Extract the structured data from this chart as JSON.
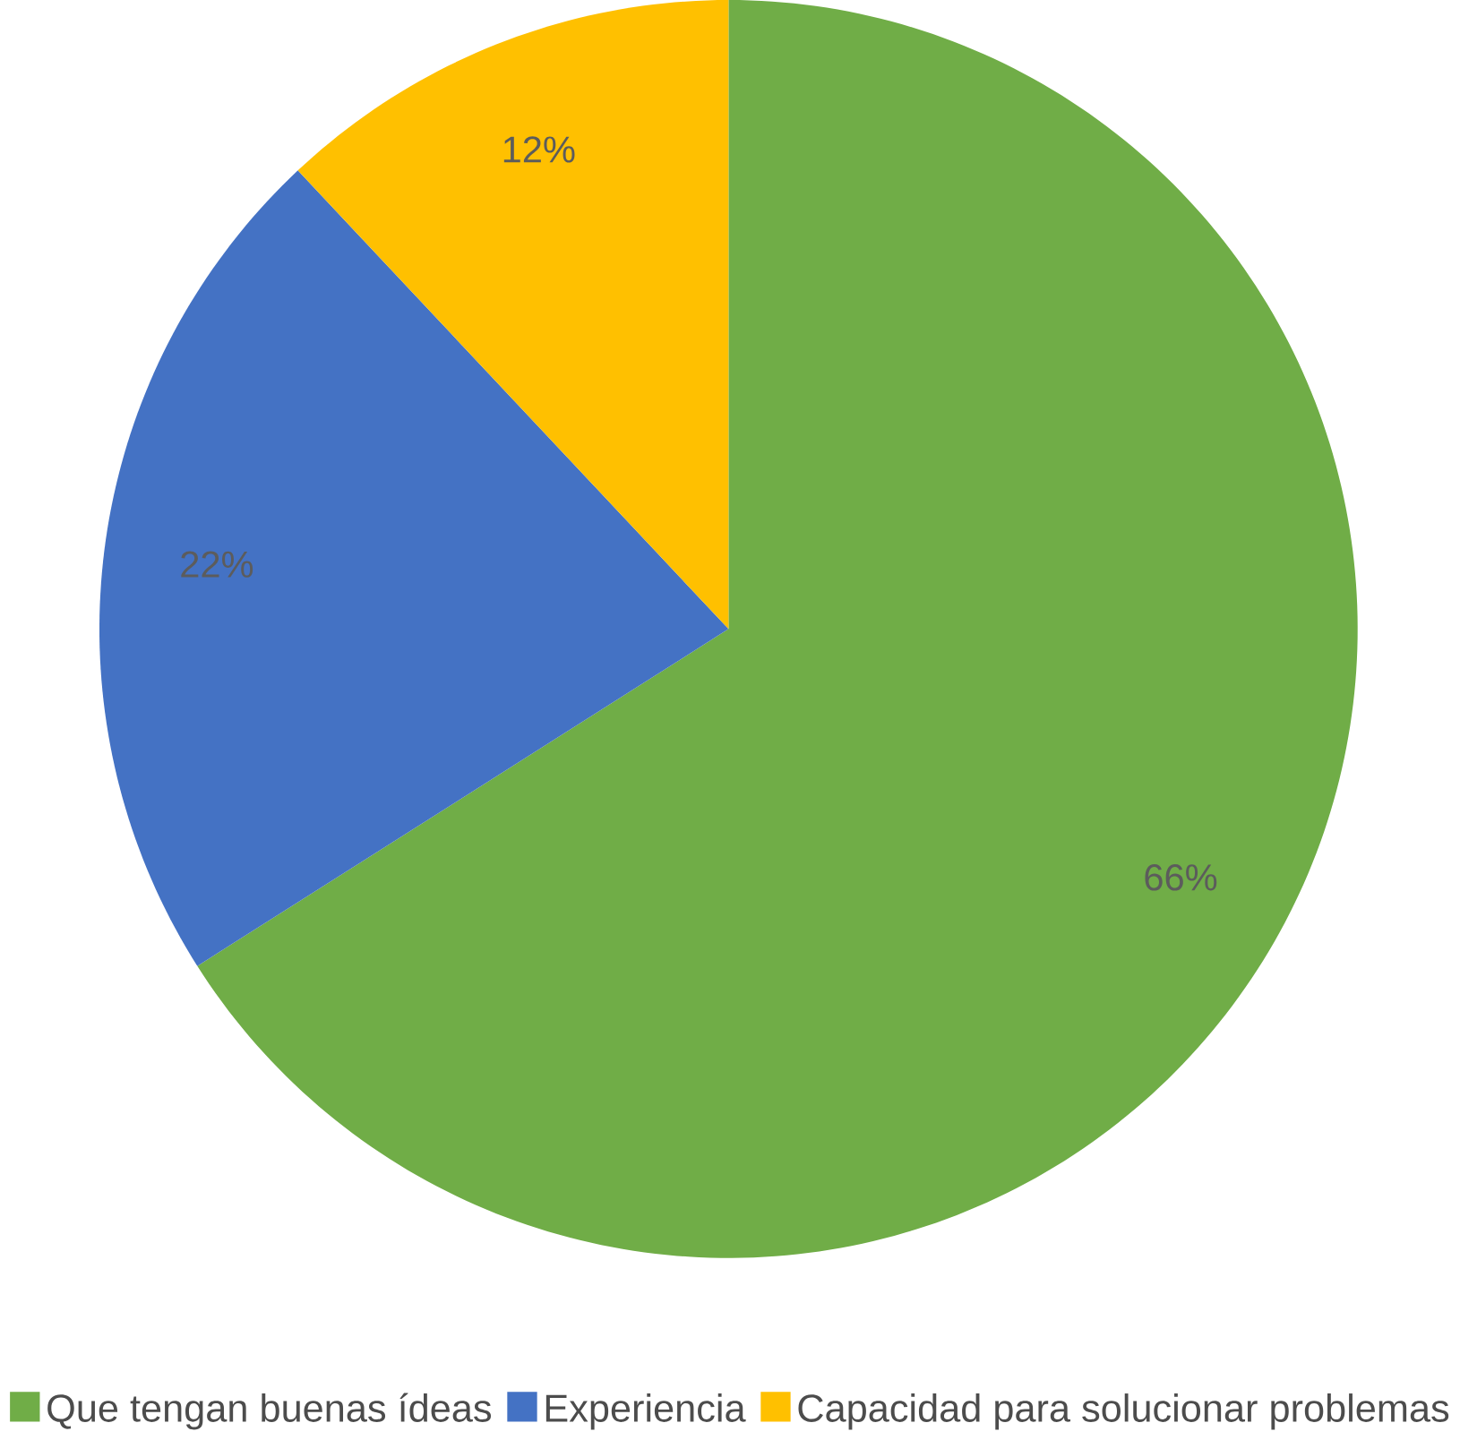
{
  "chart_data": {
    "type": "pie",
    "categories": [
      "Que tengan buenas ídeas",
      "Experiencia",
      "Capacidad para solucionar problemas"
    ],
    "values": [
      66,
      22,
      12
    ],
    "colors": [
      "#70ad47",
      "#4472c4",
      "#ffc000"
    ],
    "value_labels": [
      "66%",
      "22%",
      "12%"
    ],
    "legend": "bottom"
  }
}
